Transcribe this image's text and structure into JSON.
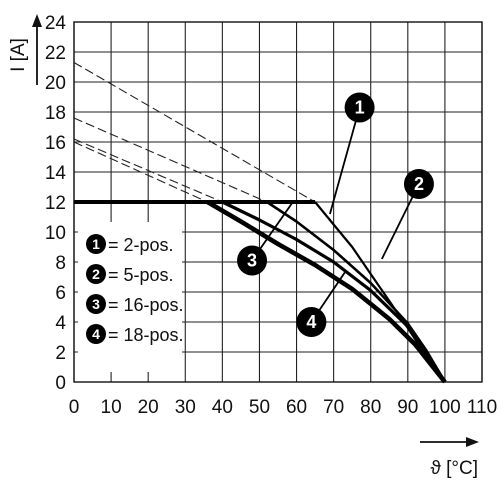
{
  "chart_data": {
    "type": "line",
    "title": "",
    "xlabel": "ϑ [°C]",
    "ylabel": "I [A]",
    "xlim": [
      0,
      110
    ],
    "ylim": [
      0,
      24
    ],
    "xticks": [
      0,
      10,
      20,
      30,
      40,
      50,
      60,
      70,
      80,
      90,
      100,
      110
    ],
    "yticks": [
      0,
      2,
      4,
      6,
      8,
      10,
      12,
      14,
      16,
      18,
      20,
      22,
      24
    ],
    "grid": true,
    "legend_position": "bottom-left",
    "legend": [
      {
        "num": "1",
        "label": "= 2-pos."
      },
      {
        "num": "2",
        "label": "= 5-pos."
      },
      {
        "num": "3",
        "label": "= 16-pos."
      },
      {
        "num": "4",
        "label": "= 18-pos."
      }
    ],
    "current_limit": {
      "style": "bold",
      "points": [
        [
          0,
          12
        ],
        [
          65,
          12
        ]
      ]
    },
    "series": [
      {
        "num": "1",
        "points": [
          [
            65,
            12
          ],
          [
            70,
            10.5
          ],
          [
            75,
            9
          ],
          [
            80,
            7.2
          ],
          [
            85,
            5.4
          ],
          [
            90,
            3.6
          ],
          [
            95,
            1.7
          ],
          [
            100,
            0
          ]
        ],
        "extrapolation": [
          [
            0,
            21.3
          ],
          [
            65,
            12
          ]
        ]
      },
      {
        "num": "2",
        "points": [
          [
            52,
            12
          ],
          [
            60,
            10.7
          ],
          [
            70,
            8.8
          ],
          [
            80,
            6.6
          ],
          [
            90,
            3.9
          ],
          [
            95,
            2.1
          ],
          [
            100,
            0
          ]
        ],
        "extrapolation": [
          [
            0,
            17.6
          ],
          [
            52,
            12
          ]
        ]
      },
      {
        "num": "3",
        "points": [
          [
            40,
            12
          ],
          [
            50,
            10.8
          ],
          [
            60,
            9.5
          ],
          [
            70,
            8
          ],
          [
            80,
            6.1
          ],
          [
            90,
            3.7
          ],
          [
            95,
            2
          ],
          [
            100,
            0
          ]
        ],
        "extrapolation": [
          [
            0,
            16.2
          ],
          [
            40,
            12
          ]
        ]
      },
      {
        "num": "4",
        "points": [
          [
            36,
            12
          ],
          [
            45,
            10.7
          ],
          [
            55,
            9.2
          ],
          [
            65,
            7.8
          ],
          [
            75,
            6.2
          ],
          [
            85,
            4.2
          ],
          [
            92,
            2.5
          ],
          [
            100,
            0
          ]
        ],
        "extrapolation": [
          [
            0,
            16
          ],
          [
            36,
            12
          ]
        ]
      }
    ],
    "callouts": [
      {
        "num": "1",
        "at": [
          77,
          18.3
        ],
        "leader_to": [
          69,
          11.2
        ]
      },
      {
        "num": "2",
        "at": [
          93,
          13.2
        ],
        "leader_to": [
          83,
          8.2
        ]
      },
      {
        "num": "3",
        "at": [
          48,
          8.1
        ],
        "leader_to": [
          59,
          12
        ]
      },
      {
        "num": "4",
        "at": [
          64,
          4
        ],
        "leader_to": [
          73,
          7.3
        ]
      }
    ]
  }
}
